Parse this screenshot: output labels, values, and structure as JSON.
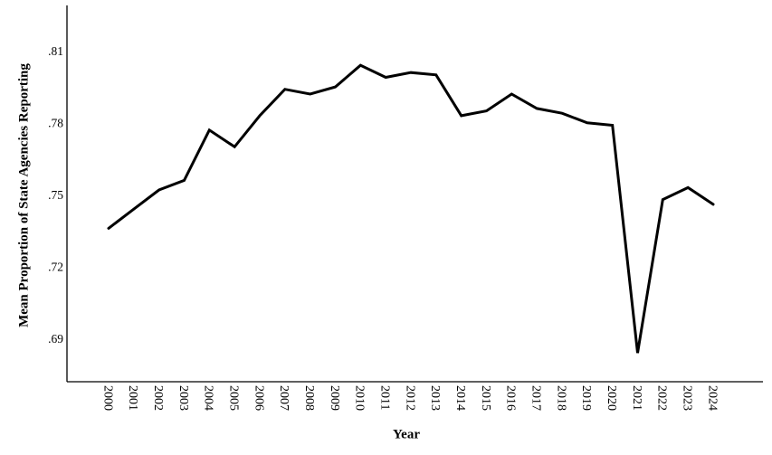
{
  "chart_data": {
    "type": "line",
    "title": "",
    "xlabel": "Year",
    "ylabel": "Mean Proportion of State Agencies Reporting",
    "x": [
      2000,
      2001,
      2002,
      2003,
      2004,
      2005,
      2006,
      2007,
      2008,
      2009,
      2010,
      2011,
      2012,
      2013,
      2014,
      2015,
      2016,
      2017,
      2018,
      2019,
      2020,
      2021,
      2022,
      2023,
      2024
    ],
    "values": [
      0.736,
      0.744,
      0.752,
      0.756,
      0.777,
      0.77,
      0.783,
      0.794,
      0.792,
      0.795,
      0.804,
      0.799,
      0.801,
      0.8,
      0.783,
      0.785,
      0.792,
      0.786,
      0.784,
      0.78,
      0.779,
      0.684,
      0.748,
      0.753,
      0.746
    ],
    "y_ticks": {
      "labels": [
        ".69",
        ".72",
        ".75",
        ".78",
        ".81"
      ],
      "values": [
        0.69,
        0.72,
        0.75,
        0.78,
        0.81
      ]
    },
    "ylim": [
      0.672,
      0.829
    ],
    "x_tick_angle_deg": 90,
    "line_color": "#000000",
    "line_width": 3,
    "background": "#ffffff",
    "grid": false,
    "legend": "none"
  }
}
